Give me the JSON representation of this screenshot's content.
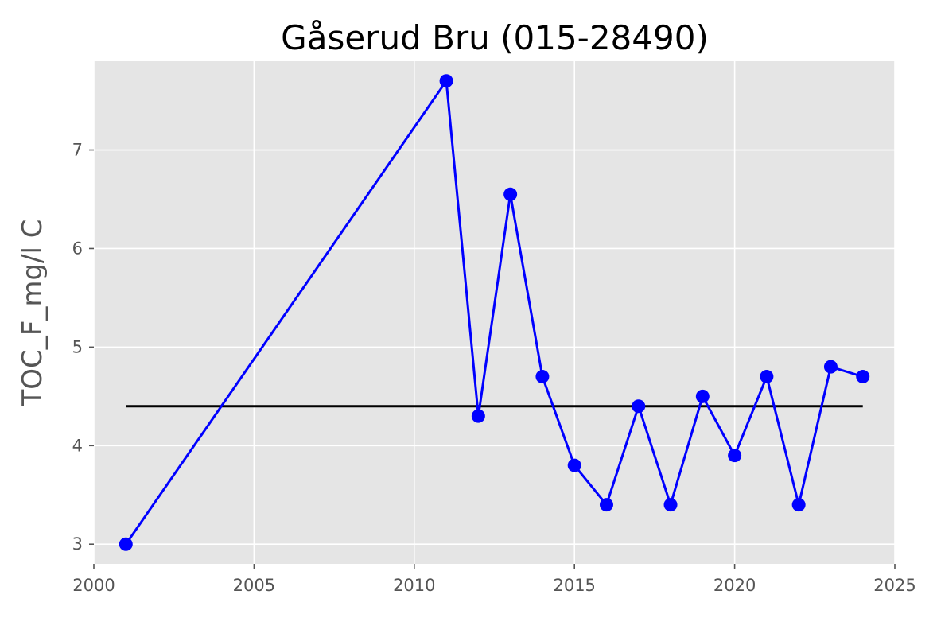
{
  "chart_data": {
    "type": "line",
    "title": "Gåserud Bru (015-28490)",
    "xlabel": "",
    "ylabel": "TOC_F_mg/l C",
    "xlim": [
      2000,
      2025
    ],
    "ylim": [
      2.8,
      7.9
    ],
    "xticks": [
      2000,
      2005,
      2010,
      2015,
      2020,
      2025
    ],
    "yticks": [
      3,
      4,
      5,
      6,
      7
    ],
    "grid": true,
    "legend": "none",
    "colors": {
      "background": "#e5e5e5",
      "grid": "#ffffff",
      "series": "#0000ff",
      "reference": "#000000",
      "tick_label": "#555555"
    },
    "series": [
      {
        "x": [
          2001,
          2011,
          2012,
          2013,
          2014,
          2015,
          2016,
          2017,
          2018,
          2019,
          2020,
          2021,
          2022,
          2023,
          2024
        ],
        "values": [
          3.0,
          7.7,
          4.3,
          6.55,
          4.7,
          3.8,
          3.4,
          4.4,
          3.4,
          4.5,
          3.9,
          4.7,
          3.4,
          4.8,
          4.7
        ]
      }
    ],
    "reference_line": {
      "y": 4.4,
      "x_start": 2001,
      "x_end": 2024
    }
  }
}
